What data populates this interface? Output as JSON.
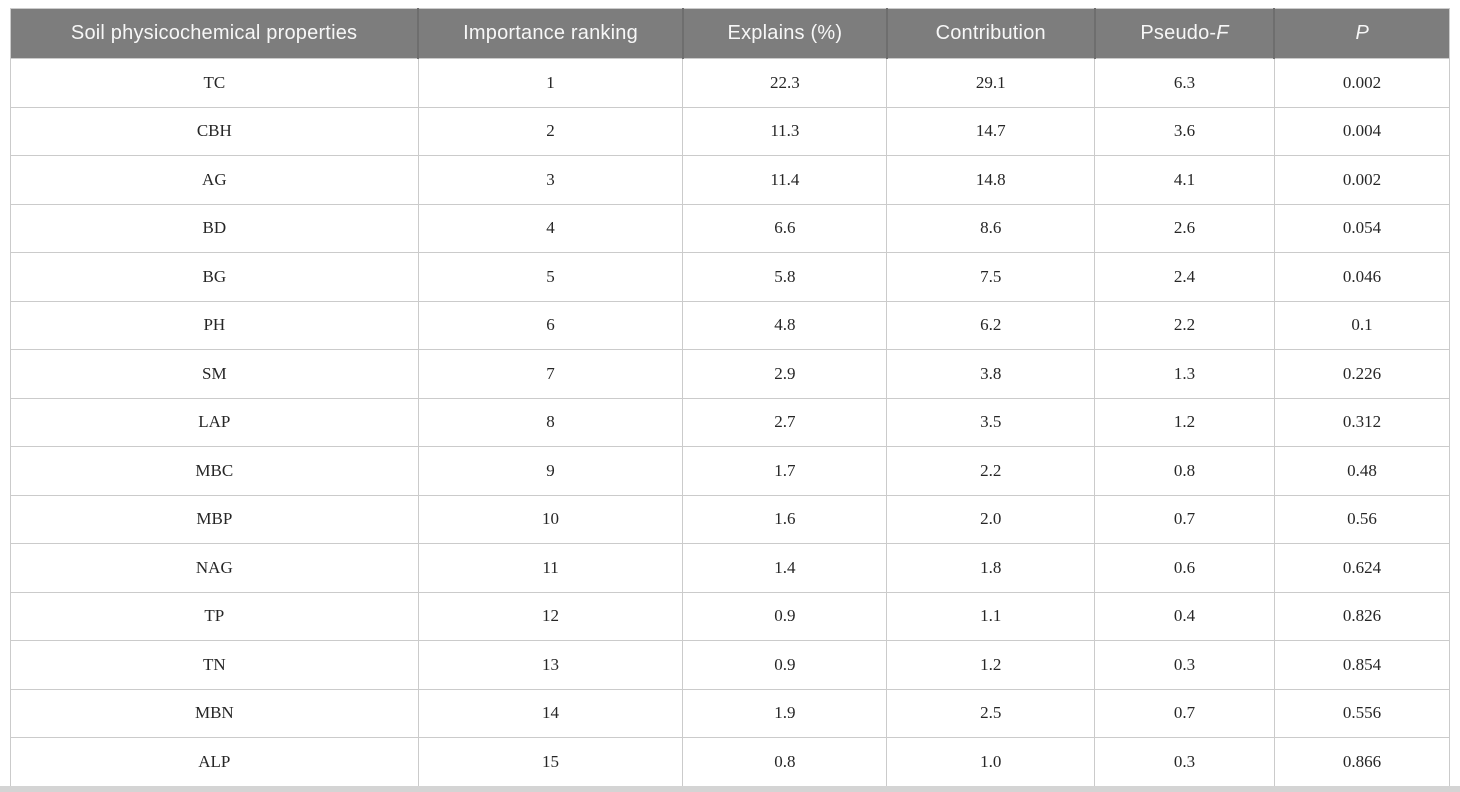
{
  "page": {
    "background": "#ffffff"
  },
  "table": {
    "style": {
      "header_bg": "#7d7d7d",
      "header_text_color": "#f7f7f7",
      "header_divider_color": "#6e6e6e",
      "body_text_color": "#262626",
      "grid_line_color": "#cbcbcb",
      "bottom_bar_color": "#d4d4d4"
    },
    "headers": [
      {
        "id": "soil-physicochemical-properties",
        "text": "Soil physicochemical properties",
        "italic": ""
      },
      {
        "id": "importance-ranking",
        "text": "Importance ranking",
        "italic": ""
      },
      {
        "id": "explains-percent",
        "text": "Explains (%)",
        "italic": ""
      },
      {
        "id": "contribution",
        "text": "Contribution",
        "italic": ""
      },
      {
        "id": "pseudo-f",
        "text": "Pseudo-",
        "italic": "F"
      },
      {
        "id": "p-value",
        "text": "",
        "italic": "P"
      }
    ],
    "rows": [
      [
        "TC",
        "1",
        "22.3",
        "29.1",
        "6.3",
        "0.002"
      ],
      [
        "CBH",
        "2",
        "11.3",
        "14.7",
        "3.6",
        "0.004"
      ],
      [
        "AG",
        "3",
        "11.4",
        "14.8",
        "4.1",
        "0.002"
      ],
      [
        "BD",
        "4",
        "6.6",
        "8.6",
        "2.6",
        "0.054"
      ],
      [
        "BG",
        "5",
        "5.8",
        "7.5",
        "2.4",
        "0.046"
      ],
      [
        "PH",
        "6",
        "4.8",
        "6.2",
        "2.2",
        "0.1"
      ],
      [
        "SM",
        "7",
        "2.9",
        "3.8",
        "1.3",
        "0.226"
      ],
      [
        "LAP",
        "8",
        "2.7",
        "3.5",
        "1.2",
        "0.312"
      ],
      [
        "MBC",
        "9",
        "1.7",
        "2.2",
        "0.8",
        "0.48"
      ],
      [
        "MBP",
        "10",
        "1.6",
        "2.0",
        "0.7",
        "0.56"
      ],
      [
        "NAG",
        "11",
        "1.4",
        "1.8",
        "0.6",
        "0.624"
      ],
      [
        "TP",
        "12",
        "0.9",
        "1.1",
        "0.4",
        "0.826"
      ],
      [
        "TN",
        "13",
        "0.9",
        "1.2",
        "0.3",
        "0.854"
      ],
      [
        "MBN",
        "14",
        "1.9",
        "2.5",
        "0.7",
        "0.556"
      ],
      [
        "ALP",
        "15",
        "0.8",
        "1.0",
        "0.3",
        "0.866"
      ]
    ]
  }
}
